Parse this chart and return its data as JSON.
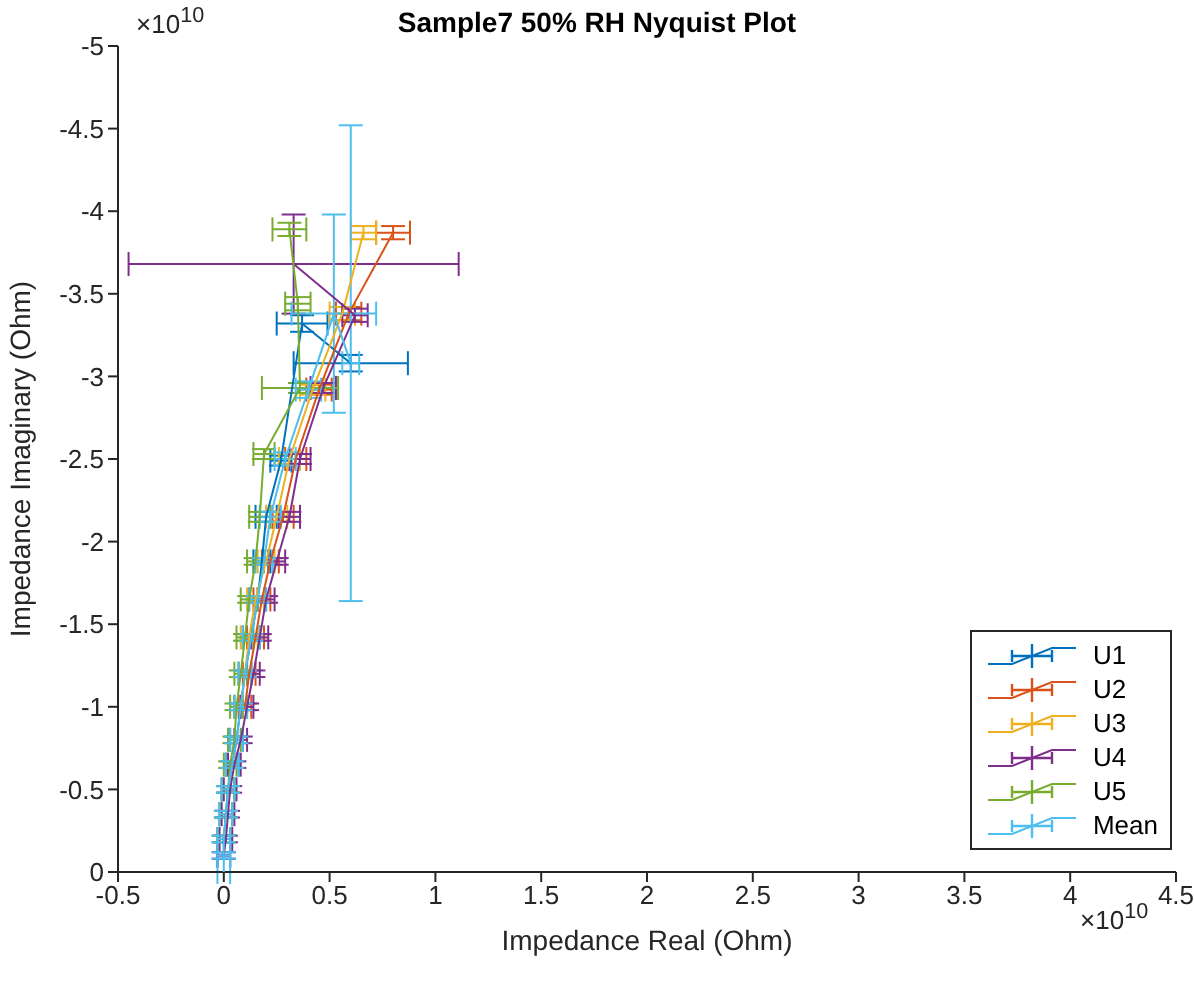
{
  "chart_data": {
    "type": "line",
    "title": "Sample7 50% RH Nyquist Plot",
    "xlabel": "Impedance Real (Ohm)",
    "ylabel": "Impedance Imaginary (Ohm)",
    "annotations": [
      "×10$^{10}$",
      "×10$^{10}$"
    ],
    "xlim": [
      -0.5,
      4.5
    ],
    "xticks": [
      -0.5,
      0,
      0.5,
      1,
      1.5,
      2,
      2.5,
      3,
      3.5,
      4,
      4.5
    ],
    "ylim": [
      0,
      -5
    ],
    "yticks": [
      0,
      -0.5,
      -1,
      -1.5,
      -2,
      -2.5,
      -3,
      -3.5,
      -4,
      -4.5,
      -5
    ],
    "grid": false,
    "legend": "bottom right",
    "marker": "none",
    "line_style": "solid",
    "series": [
      {
        "name": "U1",
        "color": "#0072bd",
        "x": [
          0,
          0,
          0.01,
          0.02,
          0.04,
          0.06,
          0.08,
          0.1,
          0.13,
          0.16,
          0.18,
          0.2,
          0.27,
          0.37,
          0.6
        ],
        "values": [
          -0.1,
          -0.2,
          -0.35,
          -0.5,
          -0.65,
          -0.8,
          -1,
          -1.2,
          -1.42,
          -1.65,
          -1.88,
          -2.15,
          -2.49,
          -3.32,
          -3.08
        ],
        "errors": [
          0.02,
          0.02,
          0.02,
          0.02,
          0.02,
          0.02,
          0.02,
          0.02,
          0.02,
          0.02,
          0.02,
          0.03,
          0.03,
          0.05,
          0.05
        ],
        "xerrors": [
          0.03,
          0.03,
          0.03,
          0.03,
          0.03,
          0.03,
          0.03,
          0.03,
          0.04,
          0.04,
          0.04,
          0.05,
          0.05,
          0.12,
          0.27
        ]
      },
      {
        "name": "U2",
        "color": "#d95319",
        "x": [
          0.1,
          0.12,
          0.15,
          0.18,
          0.22,
          0.28,
          0.34,
          0.45,
          0.59,
          0.8
        ],
        "values": [
          -1,
          -1.2,
          -1.42,
          -1.65,
          -1.88,
          -2.15,
          -2.5,
          -2.92,
          -3.38,
          -3.87
        ],
        "errors": [
          0.02,
          0.02,
          0.02,
          0.02,
          0.02,
          0.03,
          0.03,
          0.03,
          0.04,
          0.04
        ],
        "xerrors": [
          0.03,
          0.03,
          0.04,
          0.04,
          0.04,
          0.05,
          0.05,
          0.06,
          0.06,
          0.08
        ]
      },
      {
        "name": "U3",
        "color": "#edb120",
        "x": [
          0.08,
          0.1,
          0.12,
          0.15,
          0.2,
          0.25,
          0.31,
          0.42,
          0.56,
          0.66
        ],
        "values": [
          -1,
          -1.2,
          -1.42,
          -1.65,
          -1.88,
          -2.15,
          -2.5,
          -2.92,
          -3.38,
          -3.87
        ],
        "errors": [
          0.02,
          0.02,
          0.02,
          0.02,
          0.02,
          0.03,
          0.03,
          0.03,
          0.04,
          0.04
        ],
        "xerrors": [
          0.03,
          0.03,
          0.04,
          0.04,
          0.04,
          0.05,
          0.05,
          0.06,
          0.06,
          0.06
        ]
      },
      {
        "name": "U4",
        "color": "#7e2f8e",
        "x": [
          0,
          0.01,
          0.02,
          0.03,
          0.05,
          0.08,
          0.11,
          0.14,
          0.17,
          0.2,
          0.25,
          0.31,
          0.36,
          0.47,
          0.62,
          0.33
        ],
        "values": [
          -0.1,
          -0.2,
          -0.35,
          -0.5,
          -0.65,
          -0.8,
          -1,
          -1.2,
          -1.42,
          -1.65,
          -1.88,
          -2.15,
          -2.5,
          -2.93,
          -3.37,
          -3.68
        ],
        "errors": [
          0.02,
          0.02,
          0.02,
          0.02,
          0.02,
          0.02,
          0.02,
          0.02,
          0.02,
          0.02,
          0.02,
          0.03,
          0.03,
          0.03,
          0.04,
          0.3
        ],
        "xerrors": [
          0.03,
          0.03,
          0.03,
          0.03,
          0.03,
          0.03,
          0.03,
          0.03,
          0.04,
          0.04,
          0.04,
          0.05,
          0.05,
          0.06,
          0.06,
          0.78
        ]
      },
      {
        "name": "U5",
        "color": "#77ac30",
        "x": [
          0,
          0.01,
          0.02,
          0.03,
          0.05,
          0.06,
          0.08,
          0.1,
          0.12,
          0.15,
          0.17,
          0.19,
          0.36,
          0.35,
          0.31
        ],
        "values": [
          -0.2,
          -0.35,
          -0.5,
          -0.65,
          -0.8,
          -1,
          -1.2,
          -1.42,
          -1.65,
          -1.88,
          -2.15,
          -2.53,
          -2.93,
          -3.44,
          -3.89
        ],
        "errors": [
          0.02,
          0.02,
          0.02,
          0.02,
          0.02,
          0.02,
          0.02,
          0.02,
          0.02,
          0.02,
          0.03,
          0.03,
          0.03,
          0.04,
          0.04
        ],
        "xerrors": [
          0.03,
          0.03,
          0.03,
          0.03,
          0.03,
          0.03,
          0.03,
          0.04,
          0.04,
          0.04,
          0.05,
          0.05,
          0.18,
          0.06,
          0.08
        ]
      },
      {
        "name": "Mean",
        "color": "#4dbeee",
        "x": [
          0,
          0,
          0,
          0.01,
          0.02,
          0.04,
          0.06,
          0.08,
          0.1,
          0.13,
          0.16,
          0.19,
          0.22,
          0.29,
          0.4,
          0.52,
          0.6
        ],
        "values": [
          0,
          -0.1,
          -0.2,
          -0.35,
          -0.5,
          -0.65,
          -0.8,
          -1,
          -1.2,
          -1.42,
          -1.65,
          -1.88,
          -2.15,
          -2.5,
          -2.92,
          -3.38,
          -3.08
        ],
        "errors": [
          null,
          0.02,
          0.02,
          0.02,
          0.02,
          0.02,
          0.02,
          0.02,
          0.02,
          0.02,
          0.02,
          0.02,
          0.03,
          0.04,
          0.05,
          0.6,
          1.44
        ],
        "xerrors": [
          0.03,
          0.03,
          0.03,
          0.03,
          0.03,
          0.03,
          0.03,
          0.03,
          0.03,
          0.04,
          0.04,
          0.04,
          0.05,
          0.05,
          0.06,
          0.2,
          0.04
        ]
      }
    ]
  }
}
